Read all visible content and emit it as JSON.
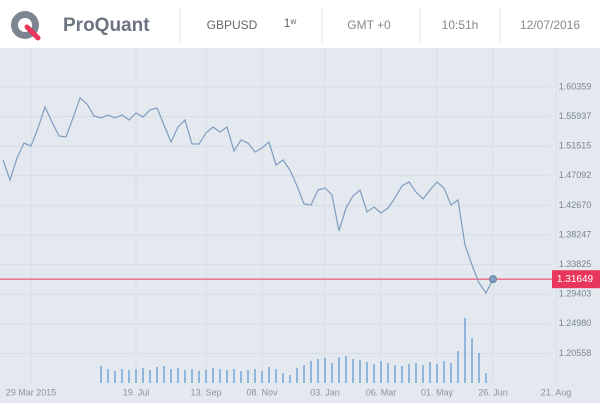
{
  "header": {
    "brand": "ProQuant",
    "symbol": "GBPUSD",
    "timeframe": "1ʷ",
    "timezone": "GMT +0",
    "time": "10:51h",
    "date": "12/07/2016"
  },
  "chart_data": {
    "type": "line",
    "categories": [
      null,
      null,
      null,
      null,
      "29 Mar 2015",
      null,
      null,
      null,
      null,
      null,
      null,
      null,
      null,
      null,
      null,
      null,
      null,
      null,
      null,
      "19. Jul",
      null,
      null,
      null,
      null,
      null,
      null,
      null,
      null,
      null,
      "13. Sep",
      null,
      null,
      null,
      null,
      null,
      null,
      null,
      "08. Nov",
      null,
      null,
      null,
      null,
      null,
      null,
      null,
      null,
      "03. Jan",
      null,
      null,
      null,
      null,
      null,
      null,
      null,
      "06. Mar",
      null,
      null,
      null,
      null,
      null,
      null,
      null,
      "01. May",
      null,
      null,
      null,
      null,
      null,
      null,
      null,
      "26. Jun",
      null,
      null,
      null,
      null,
      null,
      null,
      null,
      null,
      "21. Aug"
    ],
    "series": [
      {
        "color": "#7f9dbf",
        "values": [
          1.4945,
          1.4647,
          1.4975,
          1.5199,
          1.5155,
          1.5423,
          1.5737,
          1.5513,
          1.5304,
          1.5289,
          1.5573,
          1.5872,
          1.5782,
          1.5603,
          1.5573,
          1.5618,
          1.5573,
          1.5618,
          1.5543,
          1.5648,
          1.5588,
          1.5692,
          1.5722,
          1.5468,
          1.5214,
          1.5438,
          1.5543,
          1.5184,
          1.5184,
          1.5349,
          1.5438,
          1.5364,
          1.5438,
          1.508,
          1.5244,
          1.5199,
          1.5065,
          1.5125,
          1.5214,
          1.4871,
          1.4945,
          1.4796,
          1.4557,
          1.4288,
          1.4273,
          1.4497,
          1.4527,
          1.4423,
          1.3885,
          1.4228,
          1.4408,
          1.4497,
          1.4169,
          1.4243,
          1.4154,
          1.4228,
          1.4378,
          1.4557,
          1.4617,
          1.4467,
          1.4363,
          1.4497,
          1.4617,
          1.4527,
          1.4273,
          1.4348,
          1.3676,
          1.3377,
          1.3108,
          1.2959,
          1.31649,
          null,
          null,
          null,
          null,
          null,
          null,
          null,
          null,
          null
        ]
      }
    ],
    "volume": {
      "color": "#8fb6dc",
      "values": [
        null,
        null,
        null,
        null,
        null,
        null,
        null,
        null,
        null,
        null,
        null,
        null,
        null,
        null,
        17,
        14,
        12,
        14,
        13,
        14,
        15,
        13,
        16,
        17,
        14,
        15,
        13,
        14,
        12,
        13,
        15,
        14,
        13,
        14,
        12,
        13,
        14,
        12,
        16,
        14,
        10,
        8,
        15,
        18,
        22,
        24,
        25,
        20,
        26,
        27,
        24,
        23,
        21,
        19,
        22,
        20,
        18,
        17,
        19,
        20,
        18,
        21,
        19,
        22,
        20,
        32,
        65,
        45,
        30,
        10,
        null,
        null,
        null,
        null,
        null,
        null,
        null,
        null,
        null,
        null
      ]
    },
    "current": {
      "value": 1.31649,
      "color": "#e8365d"
    },
    "ylim": [
      1.16139,
      1.66185
    ],
    "yticks": [
      {
        "value": 1.20558,
        "label": "1.20558"
      },
      {
        "value": 1.2498,
        "label": "1.24980"
      },
      1.29403,
      1.33825,
      1.38247,
      {
        "value": 1.4267,
        "label": "1.42670"
      },
      1.47092,
      1.51515,
      1.55937,
      1.60359
    ],
    "grid": true
  }
}
